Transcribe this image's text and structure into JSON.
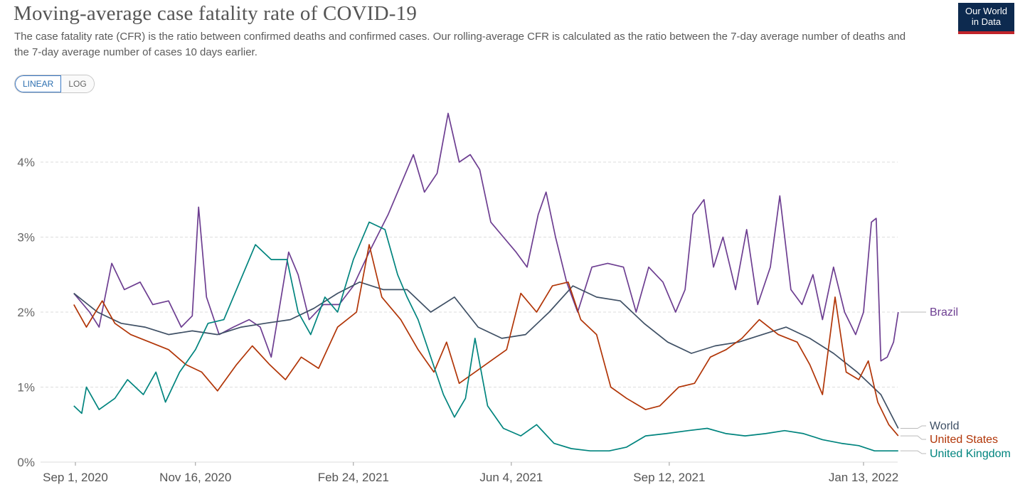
{
  "header": {
    "title": "Moving-average case fatality rate of COVID-19",
    "subtitle": "The case fatality rate (CFR) is the ratio between confirmed deaths and confirmed cases. Our rolling-average CFR is calculated as the ratio between the 7-day average number of deaths and the 7-day average number of cases 10 days earlier.",
    "logo_line1": "Our World",
    "logo_line2": "in Data"
  },
  "controls": {
    "linear_label": "LINEAR",
    "log_label": "LOG"
  },
  "colors": {
    "Brazil": "#6d3e91",
    "World": "#3f5065",
    "United States": "#b13507",
    "United Kingdom": "#00847e",
    "grid": "#dddddd",
    "logo_bg": "#0d2a4f",
    "logo_accent": "#c0242a"
  },
  "chart_data": {
    "type": "line",
    "title": "Moving-average case fatality rate of COVID-19",
    "xlabel": "",
    "ylabel": "",
    "x_range": [
      "2020-08-31",
      "2022-01-24"
    ],
    "ylim": [
      0,
      4.8
    ],
    "y_ticks": [
      0,
      1,
      2,
      3,
      4
    ],
    "y_tick_labels": [
      "0%",
      "1%",
      "2%",
      "3%",
      "4%"
    ],
    "x_ticks": [
      "2020-09-01",
      "2020-11-16",
      "2021-02-24",
      "2021-06-04",
      "2021-09-12",
      "2022-01-13"
    ],
    "x_tick_labels": [
      "Sep 1, 2020",
      "Nov 16, 2020",
      "Feb 24, 2021",
      "Jun 4, 2021",
      "Sep 12, 2021",
      "Jan 13, 2022"
    ],
    "grid": "horizontal dashed",
    "legend": "right, end-of-line labels",
    "series": [
      {
        "name": "Brazil",
        "points": [
          [
            "2020-08-31",
            2.25
          ],
          [
            "2020-09-10",
            2.0
          ],
          [
            "2020-09-16",
            1.8
          ],
          [
            "2020-09-24",
            2.65
          ],
          [
            "2020-10-02",
            2.3
          ],
          [
            "2020-10-12",
            2.4
          ],
          [
            "2020-10-20",
            2.1
          ],
          [
            "2020-10-30",
            2.15
          ],
          [
            "2020-11-07",
            1.8
          ],
          [
            "2020-11-14",
            1.95
          ],
          [
            "2020-11-18",
            3.4
          ],
          [
            "2020-11-23",
            2.2
          ],
          [
            "2020-12-01",
            1.7
          ],
          [
            "2020-12-10",
            1.8
          ],
          [
            "2020-12-20",
            1.9
          ],
          [
            "2020-12-27",
            1.8
          ],
          [
            "2021-01-03",
            1.4
          ],
          [
            "2021-01-14",
            2.8
          ],
          [
            "2021-01-20",
            2.5
          ],
          [
            "2021-01-27",
            1.9
          ],
          [
            "2021-02-05",
            2.1
          ],
          [
            "2021-02-15",
            2.1
          ],
          [
            "2021-02-24",
            2.35
          ],
          [
            "2021-03-06",
            2.8
          ],
          [
            "2021-03-18",
            3.3
          ],
          [
            "2021-03-28",
            3.8
          ],
          [
            "2021-04-03",
            4.1
          ],
          [
            "2021-04-10",
            3.6
          ],
          [
            "2021-04-18",
            3.85
          ],
          [
            "2021-04-25",
            4.65
          ],
          [
            "2021-05-02",
            4.0
          ],
          [
            "2021-05-09",
            4.1
          ],
          [
            "2021-05-15",
            3.9
          ],
          [
            "2021-05-22",
            3.2
          ],
          [
            "2021-05-30",
            3.0
          ],
          [
            "2021-06-07",
            2.8
          ],
          [
            "2021-06-14",
            2.6
          ],
          [
            "2021-06-21",
            3.3
          ],
          [
            "2021-06-26",
            3.6
          ],
          [
            "2021-07-02",
            3.0
          ],
          [
            "2021-07-09",
            2.4
          ],
          [
            "2021-07-16",
            2.0
          ],
          [
            "2021-07-25",
            2.6
          ],
          [
            "2021-08-04",
            2.65
          ],
          [
            "2021-08-14",
            2.6
          ],
          [
            "2021-08-22",
            2.0
          ],
          [
            "2021-08-30",
            2.6
          ],
          [
            "2021-09-08",
            2.4
          ],
          [
            "2021-09-16",
            2.0
          ],
          [
            "2021-09-22",
            2.3
          ],
          [
            "2021-09-27",
            3.3
          ],
          [
            "2021-10-04",
            3.5
          ],
          [
            "2021-10-10",
            2.6
          ],
          [
            "2021-10-16",
            3.0
          ],
          [
            "2021-10-24",
            2.3
          ],
          [
            "2021-10-31",
            3.1
          ],
          [
            "2021-11-07",
            2.1
          ],
          [
            "2021-11-15",
            2.6
          ],
          [
            "2021-11-21",
            3.55
          ],
          [
            "2021-11-28",
            2.3
          ],
          [
            "2021-12-05",
            2.1
          ],
          [
            "2021-12-12",
            2.5
          ],
          [
            "2021-12-18",
            1.9
          ],
          [
            "2021-12-25",
            2.6
          ],
          [
            "2022-01-01",
            2.0
          ],
          [
            "2022-01-08",
            1.7
          ],
          [
            "2022-01-13",
            2.0
          ],
          [
            "2022-01-18",
            3.2
          ],
          [
            "2022-01-21",
            3.25
          ],
          [
            "2022-01-24",
            1.35
          ],
          [
            "2022-01-28",
            1.4
          ],
          [
            "2022-02-01",
            1.6
          ],
          [
            "2022-02-04",
            2.0
          ]
        ]
      },
      {
        "name": "World",
        "points": [
          [
            "2020-08-31",
            2.25
          ],
          [
            "2020-09-15",
            2.0
          ],
          [
            "2020-09-30",
            1.85
          ],
          [
            "2020-10-15",
            1.8
          ],
          [
            "2020-10-30",
            1.7
          ],
          [
            "2020-11-14",
            1.75
          ],
          [
            "2020-11-30",
            1.7
          ],
          [
            "2020-12-15",
            1.8
          ],
          [
            "2020-12-30",
            1.85
          ],
          [
            "2021-01-15",
            1.9
          ],
          [
            "2021-01-30",
            2.05
          ],
          [
            "2021-02-14",
            2.25
          ],
          [
            "2021-02-28",
            2.4
          ],
          [
            "2021-03-15",
            2.3
          ],
          [
            "2021-03-30",
            2.3
          ],
          [
            "2021-04-14",
            2.0
          ],
          [
            "2021-04-29",
            2.2
          ],
          [
            "2021-05-14",
            1.8
          ],
          [
            "2021-05-29",
            1.65
          ],
          [
            "2021-06-13",
            1.7
          ],
          [
            "2021-06-28",
            2.0
          ],
          [
            "2021-07-13",
            2.35
          ],
          [
            "2021-07-28",
            2.2
          ],
          [
            "2021-08-12",
            2.15
          ],
          [
            "2021-08-27",
            1.85
          ],
          [
            "2021-09-11",
            1.6
          ],
          [
            "2021-09-26",
            1.45
          ],
          [
            "2021-10-11",
            1.55
          ],
          [
            "2021-10-26",
            1.6
          ],
          [
            "2021-11-10",
            1.7
          ],
          [
            "2021-11-25",
            1.8
          ],
          [
            "2021-12-10",
            1.65
          ],
          [
            "2021-12-25",
            1.45
          ],
          [
            "2022-01-09",
            1.2
          ],
          [
            "2022-01-24",
            0.9
          ],
          [
            "2022-02-04",
            0.45
          ]
        ]
      },
      {
        "name": "United States",
        "points": [
          [
            "2020-08-31",
            2.1
          ],
          [
            "2020-09-08",
            1.8
          ],
          [
            "2020-09-18",
            2.15
          ],
          [
            "2020-09-26",
            1.85
          ],
          [
            "2020-10-06",
            1.7
          ],
          [
            "2020-10-18",
            1.6
          ],
          [
            "2020-10-30",
            1.5
          ],
          [
            "2020-11-10",
            1.3
          ],
          [
            "2020-11-20",
            1.2
          ],
          [
            "2020-11-30",
            0.95
          ],
          [
            "2020-12-12",
            1.3
          ],
          [
            "2020-12-22",
            1.55
          ],
          [
            "2021-01-02",
            1.3
          ],
          [
            "2021-01-12",
            1.1
          ],
          [
            "2021-01-22",
            1.4
          ],
          [
            "2021-02-02",
            1.25
          ],
          [
            "2021-02-14",
            1.8
          ],
          [
            "2021-02-26",
            2.0
          ],
          [
            "2021-03-06",
            2.9
          ],
          [
            "2021-03-14",
            2.2
          ],
          [
            "2021-03-26",
            1.9
          ],
          [
            "2021-04-06",
            1.5
          ],
          [
            "2021-04-16",
            1.2
          ],
          [
            "2021-04-24",
            1.6
          ],
          [
            "2021-05-02",
            1.05
          ],
          [
            "2021-05-12",
            1.2
          ],
          [
            "2021-05-22",
            1.35
          ],
          [
            "2021-06-01",
            1.5
          ],
          [
            "2021-06-10",
            2.25
          ],
          [
            "2021-06-20",
            2.0
          ],
          [
            "2021-06-30",
            2.35
          ],
          [
            "2021-07-10",
            2.4
          ],
          [
            "2021-07-18",
            1.9
          ],
          [
            "2021-07-28",
            1.7
          ],
          [
            "2021-08-06",
            1.0
          ],
          [
            "2021-08-16",
            0.85
          ],
          [
            "2021-08-28",
            0.7
          ],
          [
            "2021-09-06",
            0.75
          ],
          [
            "2021-09-18",
            1.0
          ],
          [
            "2021-09-28",
            1.05
          ],
          [
            "2021-10-08",
            1.4
          ],
          [
            "2021-10-18",
            1.5
          ],
          [
            "2021-10-28",
            1.65
          ],
          [
            "2021-11-08",
            1.9
          ],
          [
            "2021-11-20",
            1.7
          ],
          [
            "2021-12-02",
            1.6
          ],
          [
            "2021-12-10",
            1.3
          ],
          [
            "2021-12-18",
            0.9
          ],
          [
            "2021-12-26",
            2.2
          ],
          [
            "2022-01-02",
            1.2
          ],
          [
            "2022-01-10",
            1.1
          ],
          [
            "2022-01-16",
            1.35
          ],
          [
            "2022-01-22",
            0.8
          ],
          [
            "2022-01-29",
            0.5
          ],
          [
            "2022-02-04",
            0.35
          ]
        ]
      },
      {
        "name": "United Kingdom",
        "points": [
          [
            "2020-08-31",
            0.75
          ],
          [
            "2020-09-05",
            0.65
          ],
          [
            "2020-09-08",
            1.0
          ],
          [
            "2020-09-16",
            0.7
          ],
          [
            "2020-09-26",
            0.85
          ],
          [
            "2020-10-04",
            1.1
          ],
          [
            "2020-10-14",
            0.9
          ],
          [
            "2020-10-22",
            1.2
          ],
          [
            "2020-10-28",
            0.8
          ],
          [
            "2020-11-06",
            1.2
          ],
          [
            "2020-11-16",
            1.5
          ],
          [
            "2020-11-24",
            1.85
          ],
          [
            "2020-12-04",
            1.9
          ],
          [
            "2020-12-14",
            2.4
          ],
          [
            "2020-12-24",
            2.9
          ],
          [
            "2021-01-03",
            2.7
          ],
          [
            "2021-01-13",
            2.7
          ],
          [
            "2021-01-20",
            2.0
          ],
          [
            "2021-01-28",
            1.7
          ],
          [
            "2021-02-06",
            2.2
          ],
          [
            "2021-02-14",
            2.0
          ],
          [
            "2021-02-24",
            2.7
          ],
          [
            "2021-03-06",
            3.2
          ],
          [
            "2021-03-16",
            3.1
          ],
          [
            "2021-03-24",
            2.5
          ],
          [
            "2021-03-30",
            2.2
          ],
          [
            "2021-04-06",
            1.9
          ],
          [
            "2021-04-14",
            1.4
          ],
          [
            "2021-04-22",
            0.9
          ],
          [
            "2021-04-29",
            0.6
          ],
          [
            "2021-05-06",
            0.85
          ],
          [
            "2021-05-12",
            1.65
          ],
          [
            "2021-05-20",
            0.75
          ],
          [
            "2021-05-30",
            0.45
          ],
          [
            "2021-06-10",
            0.35
          ],
          [
            "2021-06-20",
            0.5
          ],
          [
            "2021-07-01",
            0.25
          ],
          [
            "2021-07-12",
            0.18
          ],
          [
            "2021-07-24",
            0.15
          ],
          [
            "2021-08-05",
            0.15
          ],
          [
            "2021-08-16",
            0.2
          ],
          [
            "2021-08-28",
            0.35
          ],
          [
            "2021-09-10",
            0.38
          ],
          [
            "2021-09-24",
            0.42
          ],
          [
            "2021-10-06",
            0.45
          ],
          [
            "2021-10-18",
            0.38
          ],
          [
            "2021-10-30",
            0.35
          ],
          [
            "2021-11-12",
            0.38
          ],
          [
            "2021-11-24",
            0.42
          ],
          [
            "2021-12-06",
            0.38
          ],
          [
            "2021-12-18",
            0.3
          ],
          [
            "2021-12-30",
            0.25
          ],
          [
            "2022-01-10",
            0.22
          ],
          [
            "2022-01-20",
            0.15
          ],
          [
            "2022-02-04",
            0.15
          ]
        ]
      }
    ]
  }
}
